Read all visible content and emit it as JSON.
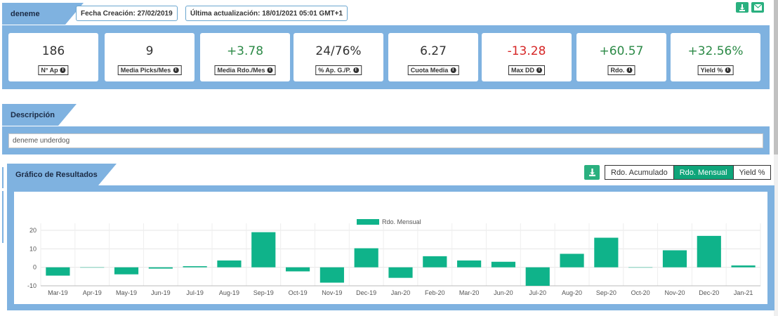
{
  "header": {
    "strategy_name": "deneme",
    "creation_label": "Fecha Creación:",
    "creation_date": "27/02/2019",
    "update_label": "Última actualización:",
    "update_date": "18/01/2021 05:01 GMT+1"
  },
  "kpis": [
    {
      "value": "186",
      "label": "N° Ap",
      "tone": "neutral"
    },
    {
      "value": "9",
      "label": "Media Picks/Mes",
      "tone": "neutral"
    },
    {
      "value": "+3.78",
      "label": "Media Rdo./Mes",
      "tone": "pos"
    },
    {
      "value": "24/76%",
      "label": "% Ap. G./P.",
      "tone": "neutral"
    },
    {
      "value": "6.27",
      "label": "Cuota Media",
      "tone": "neutral"
    },
    {
      "value": "-13.28",
      "label": "Max DD",
      "tone": "neg"
    },
    {
      "value": "+60.57",
      "label": "Rdo.",
      "tone": "pos"
    },
    {
      "value": "+32.56%",
      "label": "Yield %",
      "tone": "pos"
    }
  ],
  "description": {
    "title": "Descripción",
    "text": "deneme underdog"
  },
  "results": {
    "title": "Gráfico de Resultados",
    "tabs": [
      "Rdo. Acumulado",
      "Rdo. Mensual",
      "Yield %"
    ],
    "active_tab": "Rdo. Mensual"
  },
  "icons": {
    "download": "download-icon",
    "email": "envelope-icon",
    "info": "info-circle-icon"
  },
  "colors": {
    "accent": "#7fb2e0",
    "bar": "#0fb38a",
    "positive": "#2c8a47",
    "negative": "#d62626"
  },
  "chart_data": {
    "type": "bar",
    "series": [
      {
        "name": "Rdo. Mensual",
        "values": [
          -4.5,
          0,
          -3.8,
          -0.7,
          0.6,
          3.7,
          19.0,
          -2.2,
          -8.3,
          10.3,
          -5.7,
          6.0,
          3.7,
          3.0,
          -10.0,
          7.3,
          16.0,
          0,
          9.2,
          17.0,
          1.0
        ]
      }
    ],
    "categories": [
      "Mar-19",
      "Apr-19",
      "May-19",
      "Jun-19",
      "Jul-19",
      "Aug-19",
      "Sep-19",
      "Oct-19",
      "Nov-19",
      "Dec-19",
      "Jan-20",
      "Feb-20",
      "Mar-20",
      "Jun-20",
      "Jul-20",
      "Aug-20",
      "Sep-20",
      "Oct-20",
      "Nov-20",
      "Dec-20",
      "Jan-21"
    ],
    "yticks": [
      "20",
      "10",
      "0",
      "-10"
    ],
    "ylim": [
      -10,
      20
    ],
    "legend": "top-center",
    "grid": true
  }
}
